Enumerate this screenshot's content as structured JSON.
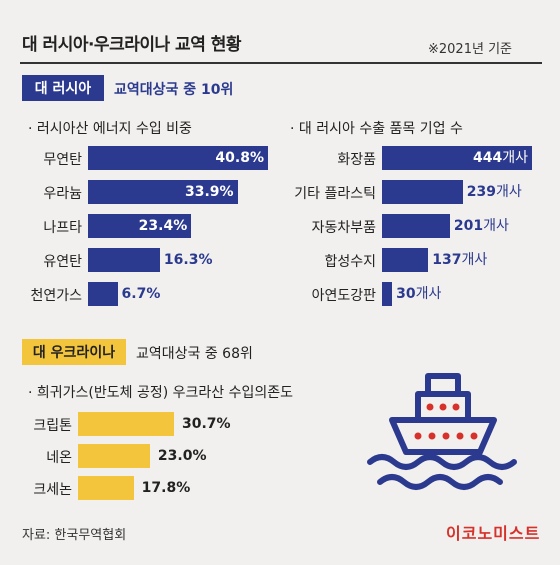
{
  "header": {
    "title": "대 러시아·우크라이나 교역 현황",
    "basis": "※2021년 기준"
  },
  "russia": {
    "tag": "대 러시아",
    "rank": "교역대상국 중 10위"
  },
  "ukraine": {
    "tag": "대 우크라이나",
    "rank": "교역대상국 중 68위"
  },
  "colors": {
    "navy": "#2b3a8f",
    "yellow": "#f2c53d",
    "brand_red": "#d6312a"
  },
  "chart_data": [
    {
      "type": "bar",
      "orientation": "horizontal",
      "title": "· 러시아산 에너지 수입 비중",
      "categories": [
        "무연탄",
        "우라늄",
        "나프타",
        "유연탄",
        "천연가스"
      ],
      "values": [
        40.8,
        33.9,
        23.4,
        16.3,
        6.7
      ],
      "labels": [
        "40.8%",
        "33.9%",
        "23.4%",
        "16.3%",
        "6.7%"
      ],
      "color": "#2b3a8f"
    },
    {
      "type": "bar",
      "orientation": "horizontal",
      "title": "· 대 러시아 수출 품목 기업 수",
      "categories": [
        "화장품",
        "기타 플라스틱",
        "자동차부품",
        "합성수지",
        "아연도강판"
      ],
      "values": [
        444,
        239,
        201,
        137,
        30
      ],
      "unit": "개사",
      "color": "#2b3a8f"
    },
    {
      "type": "bar",
      "orientation": "horizontal",
      "title": "· 희귀가스(반도체 공정) 우크라산 수입의존도",
      "categories": [
        "크립톤",
        "네온",
        "크세논"
      ],
      "values": [
        30.7,
        23.0,
        17.8
      ],
      "labels": [
        "30.7%",
        "23.0%",
        "17.8%"
      ],
      "color": "#f2c53d"
    }
  ],
  "footer": {
    "source": "자료: 한국무역협회",
    "brand": "이코노미스트"
  },
  "icons": {
    "illustration": "ship-icon"
  }
}
